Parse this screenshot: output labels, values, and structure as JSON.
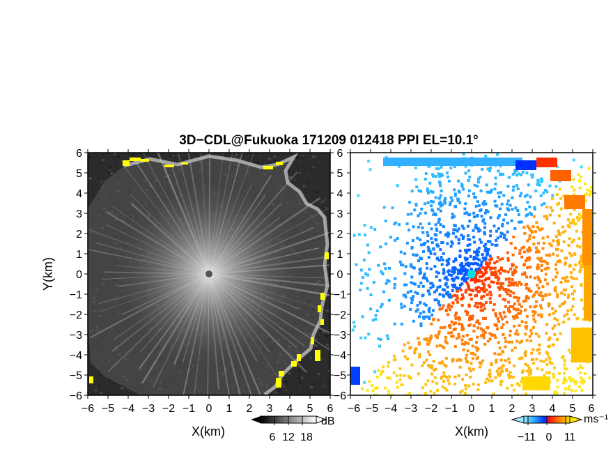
{
  "chart_data": [
    {
      "type": "heatmap",
      "title": "3D−CDL@Fukuoka 171209 012418 PPI EL=10.1°",
      "panel": "left",
      "xlabel": "X(km)",
      "ylabel": "Y(km)",
      "xlim": [
        -6,
        6
      ],
      "ylim": [
        -6,
        6
      ],
      "x_ticks": [
        "−6",
        "−5",
        "−4",
        "−3",
        "−2",
        "−1",
        "0",
        "1",
        "2",
        "3",
        "4",
        "5",
        "6"
      ],
      "y_ticks": [
        "6",
        "5",
        "4",
        "3",
        "2",
        "1",
        "0",
        "−1",
        "−2",
        "−3",
        "−4",
        "−5",
        "−6"
      ],
      "colorbar": {
        "label": "dB",
        "ticks": [
          "6",
          "12",
          "18"
        ],
        "range": [
          0,
          24
        ]
      },
      "colors": {
        "background": "#2a2a2a",
        "rays": "#d8d8d8",
        "edge_highlight": "#ffff00",
        "center": "#555555"
      }
    },
    {
      "type": "heatmap",
      "panel": "right",
      "xlabel": "X(km)",
      "xlim": [
        -6,
        6
      ],
      "ylim": [
        -6,
        6
      ],
      "x_ticks": [
        "−6",
        "−5",
        "−4",
        "−3",
        "−2",
        "−1",
        "0",
        "1",
        "2",
        "3",
        "4",
        "5",
        "6"
      ],
      "y_ticks": [
        "6",
        "5",
        "4",
        "3",
        "2",
        "1",
        "0",
        "−1",
        "−2",
        "−3",
        "−4",
        "−5",
        "−6"
      ],
      "colorbar": {
        "label": "ms⁻¹",
        "ticks": [
          "−11",
          "0",
          "11"
        ],
        "range": [
          -14,
          14
        ]
      },
      "colors": {
        "negative": "#0050ff",
        "light_negative": "#40c8ff",
        "positive": "#ff6000",
        "light_positive": "#ffd000",
        "center": "#00e0e0"
      }
    }
  ]
}
